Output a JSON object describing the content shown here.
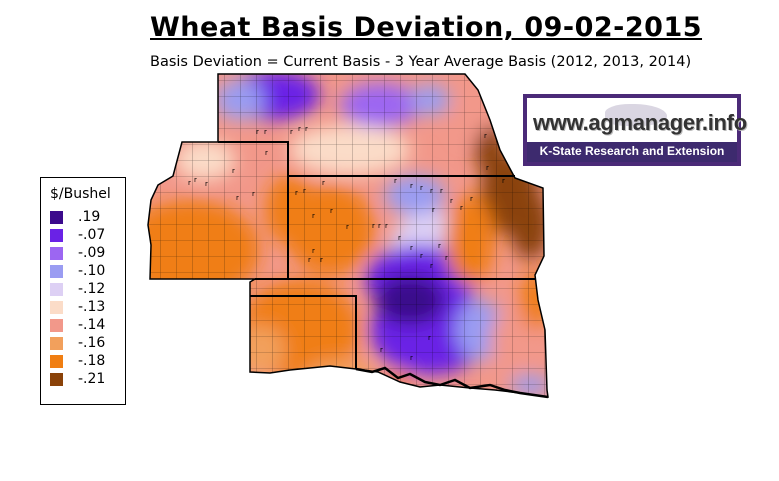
{
  "title": "Wheat Basis Deviation, 09-02-2015",
  "subtitle": "Basis Deviation = Current Basis - 3 Year Average Basis (2012, 2013, 2014)",
  "legend": {
    "title": "$/Bushel",
    "items": [
      {
        "label": ".19",
        "color": "#3b0a8c"
      },
      {
        "label": "-.07",
        "color": "#6a22e6"
      },
      {
        "label": "-.09",
        "color": "#9c66f2"
      },
      {
        "label": "-.10",
        "color": "#9a9cf2"
      },
      {
        "label": "-.12",
        "color": "#ddd0f4"
      },
      {
        "label": "-.13",
        "color": "#fbdcc8"
      },
      {
        "label": "-.14",
        "color": "#f2988a"
      },
      {
        "label": "-.16",
        "color": "#f2a05c"
      },
      {
        "label": "-.18",
        "color": "#f07e12"
      },
      {
        "label": "-.21",
        "color": "#8a4208"
      }
    ]
  },
  "logo": {
    "url_text": "www.agmanager.info",
    "org_text": "K-State Research and Extension",
    "border_color": "#4b2a78"
  }
}
